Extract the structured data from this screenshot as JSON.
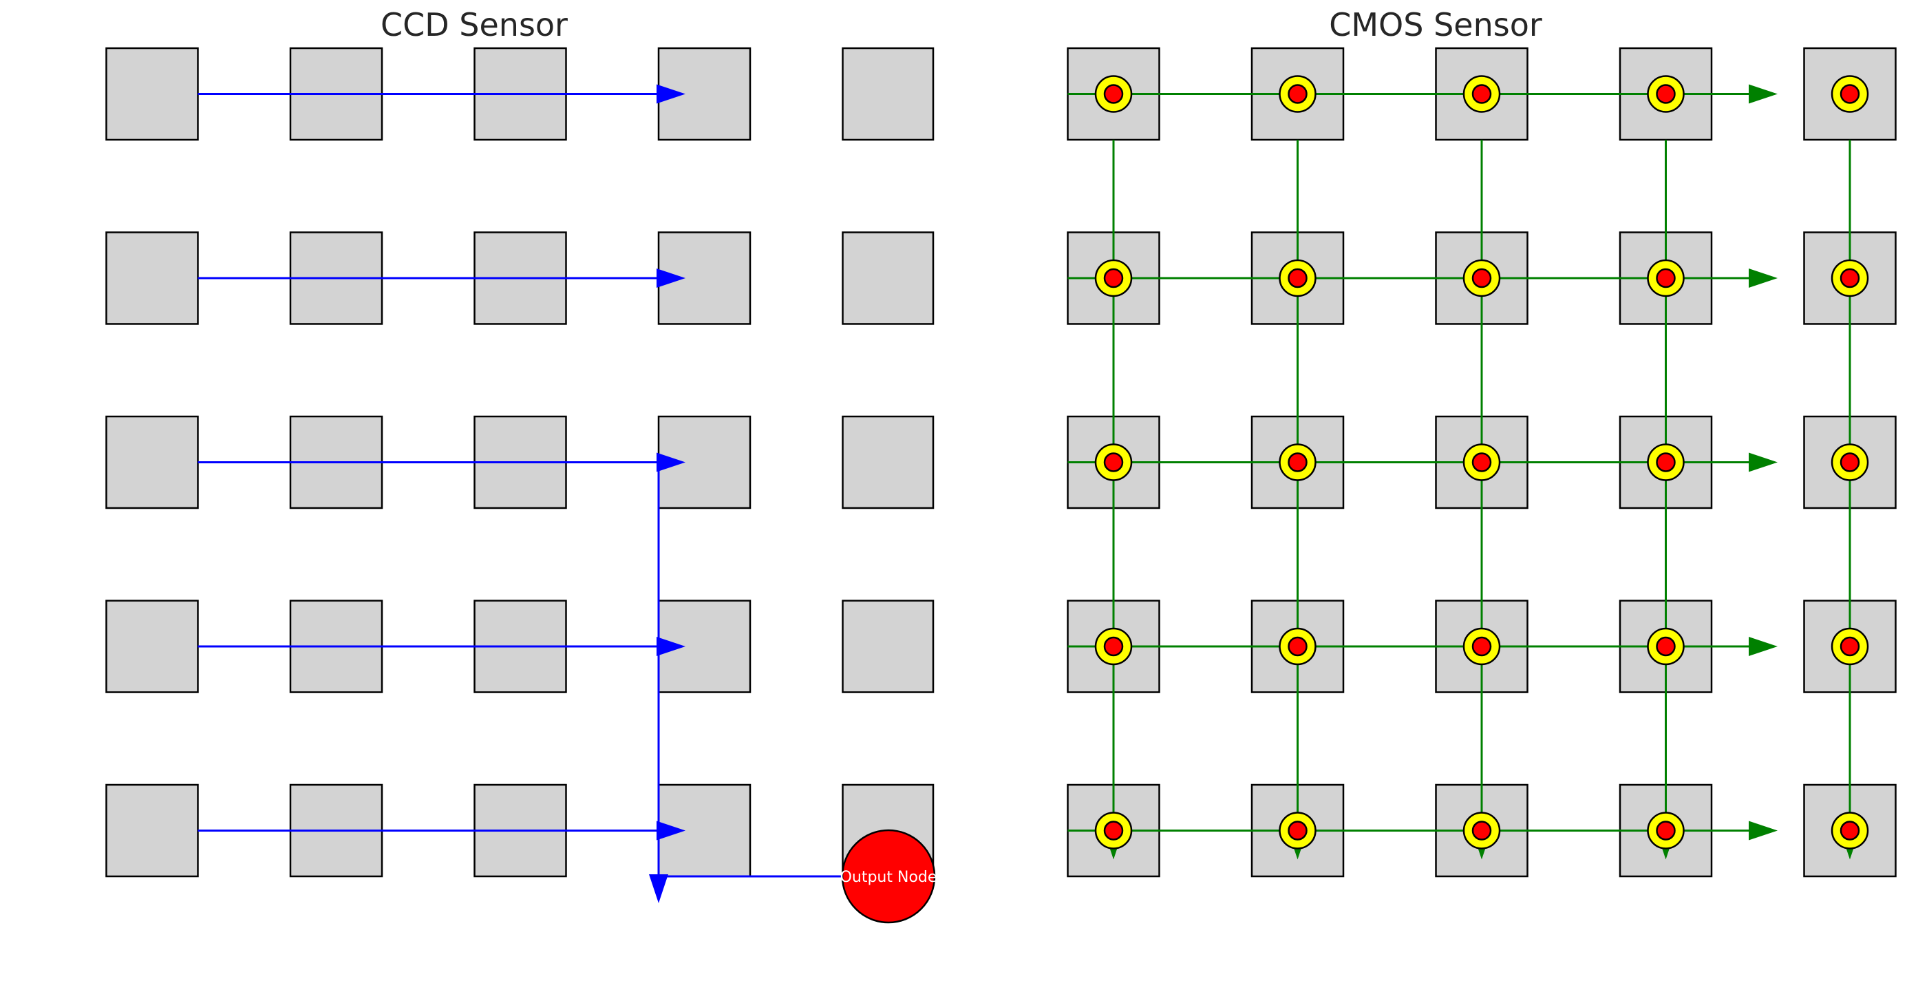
{
  "ccd": {
    "title": "CCD Sensor",
    "rows": 5,
    "cols": 5,
    "output_node_label": "Output Node",
    "arrow_color": "#0000ff",
    "node_color": "#ff0000"
  },
  "cmos": {
    "title": "CMOS Sensor",
    "rows": 5,
    "cols": 5,
    "line_color": "#008000",
    "ring_color": "#ffff00",
    "dot_color": "#ff0000"
  },
  "colors": {
    "pixel_fill": "#d3d3d3",
    "pixel_stroke": "#000000"
  }
}
